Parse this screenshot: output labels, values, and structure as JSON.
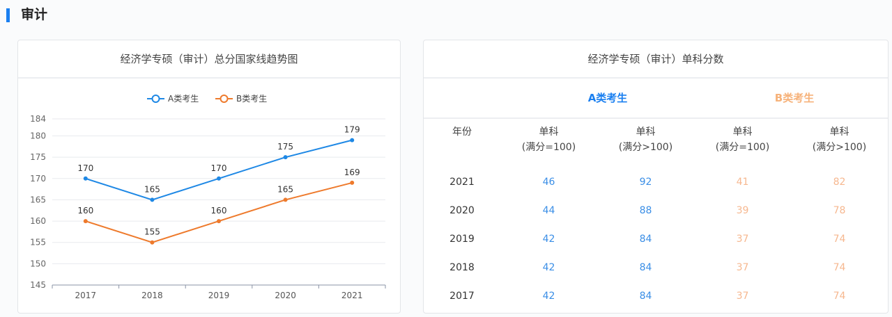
{
  "section_title": "审计",
  "chart_data": {
    "type": "line",
    "title": "经济学专硕（审计）总分国家线趋势图",
    "categories": [
      "2017",
      "2018",
      "2019",
      "2020",
      "2021"
    ],
    "series": [
      {
        "name": "A类考生",
        "color": "#1e88e5",
        "values": [
          170,
          165,
          170,
          175,
          179
        ]
      },
      {
        "name": "B类考生",
        "color": "#ee7a2c",
        "values": [
          160,
          155,
          160,
          165,
          169
        ]
      }
    ],
    "ylim": [
      145,
      184
    ],
    "yticks": [
      145,
      150,
      155,
      160,
      165,
      170,
      175,
      180,
      184
    ],
    "grid": true,
    "legend": "top-center",
    "data_labels": true
  },
  "table": {
    "title": "经济学专硕（审计）单科分数",
    "group_a": "A类考生",
    "group_b": "B类考生",
    "headers": [
      "年份",
      "单科\n(满分=100)",
      "单科\n(满分>100)",
      "单科\n(满分=100)",
      "单科\n(满分>100)"
    ],
    "rows": [
      [
        "2021",
        "46",
        "92",
        "41",
        "82"
      ],
      [
        "2020",
        "44",
        "88",
        "39",
        "78"
      ],
      [
        "2019",
        "42",
        "84",
        "37",
        "74"
      ],
      [
        "2018",
        "42",
        "84",
        "37",
        "74"
      ],
      [
        "2017",
        "42",
        "84",
        "37",
        "74"
      ]
    ],
    "colors": {
      "a": "#3a8ee6",
      "b": "#f3a06a"
    }
  }
}
